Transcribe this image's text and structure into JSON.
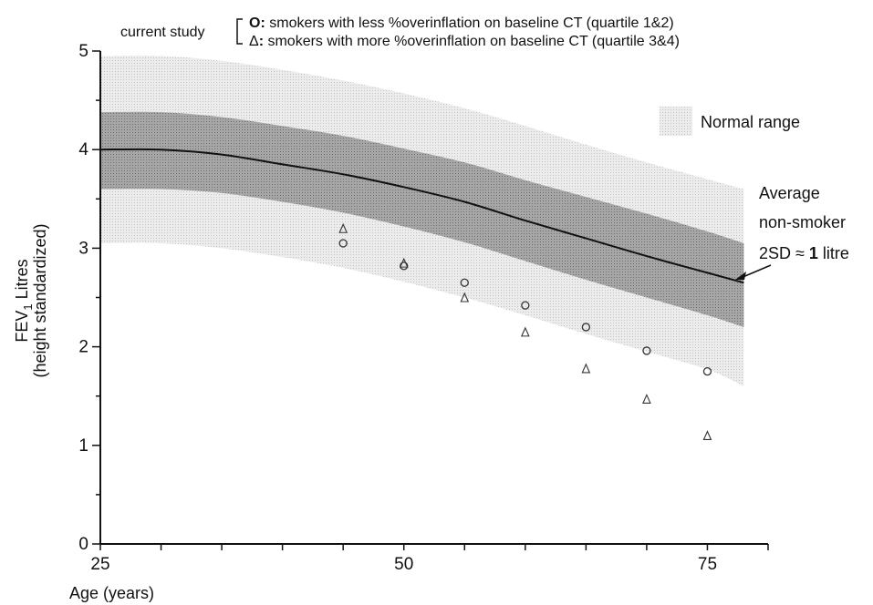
{
  "chart_data": {
    "type": "line",
    "title": "",
    "xlabel": "Age (years)",
    "ylabel": {
      "line1_prefix": "FEV",
      "line1_subscript": "1",
      "line1_suffix": "  Litres",
      "line2": "(height standardized)"
    },
    "xlim": [
      25,
      80
    ],
    "ylim": [
      0,
      5
    ],
    "x_ticks": [
      25,
      50,
      75
    ],
    "y_ticks": [
      0,
      1,
      2,
      3,
      4,
      5
    ],
    "legend": {
      "group_label": "current study",
      "entries": [
        {
          "marker": "O",
          "label": "smokers with less %overinflation on baseline CT (quartile 1&2)"
        },
        {
          "marker": "Δ",
          "label": "smokers with more %overinflation on baseline CT (quartile 3&4)"
        }
      ],
      "normal_range_label": "Normal range"
    },
    "annotation": {
      "line1": "Average",
      "line2": "non-smoker",
      "line3_prefix": "2SD ≈ ",
      "line3_bold": "1",
      "line3_suffix": " litre"
    },
    "average_line": {
      "x": [
        25,
        30,
        35,
        40,
        45,
        50,
        55,
        60,
        65,
        70,
        75,
        78
      ],
      "y": [
        4.0,
        4.0,
        3.95,
        3.85,
        3.75,
        3.62,
        3.47,
        3.28,
        3.1,
        2.92,
        2.75,
        2.65
      ]
    },
    "inner_band": {
      "x": [
        25,
        30,
        35,
        40,
        45,
        50,
        55,
        60,
        65,
        70,
        75,
        78
      ],
      "upper": [
        4.38,
        4.38,
        4.33,
        4.24,
        4.14,
        4.01,
        3.87,
        3.69,
        3.52,
        3.35,
        3.17,
        3.05
      ],
      "lower": [
        3.6,
        3.6,
        3.56,
        3.47,
        3.36,
        3.22,
        3.06,
        2.87,
        2.68,
        2.5,
        2.32,
        2.2
      ]
    },
    "outer_band": {
      "x": [
        25,
        30,
        35,
        40,
        45,
        50,
        55,
        60,
        65,
        70,
        75,
        78
      ],
      "upper": [
        4.95,
        4.95,
        4.9,
        4.81,
        4.7,
        4.57,
        4.42,
        4.24,
        4.05,
        3.87,
        3.7,
        3.6
      ],
      "lower": [
        3.05,
        3.05,
        3.0,
        2.91,
        2.8,
        2.66,
        2.5,
        2.32,
        2.13,
        1.95,
        1.77,
        1.6
      ]
    },
    "series": [
      {
        "marker": "circle",
        "x": [
          45,
          50,
          55,
          60,
          65,
          70,
          75
        ],
        "y": [
          3.05,
          2.82,
          2.65,
          2.42,
          2.2,
          1.96,
          1.75
        ]
      },
      {
        "marker": "triangle",
        "x": [
          45,
          50,
          55,
          60,
          65,
          70,
          75
        ],
        "y": [
          3.2,
          2.85,
          2.5,
          2.15,
          1.78,
          1.47,
          1.1
        ]
      }
    ],
    "colors": {
      "outer_band": "#e4e4e4",
      "inner_band": "#9e9e9e",
      "line": "#111111",
      "marker": "#333333"
    }
  }
}
